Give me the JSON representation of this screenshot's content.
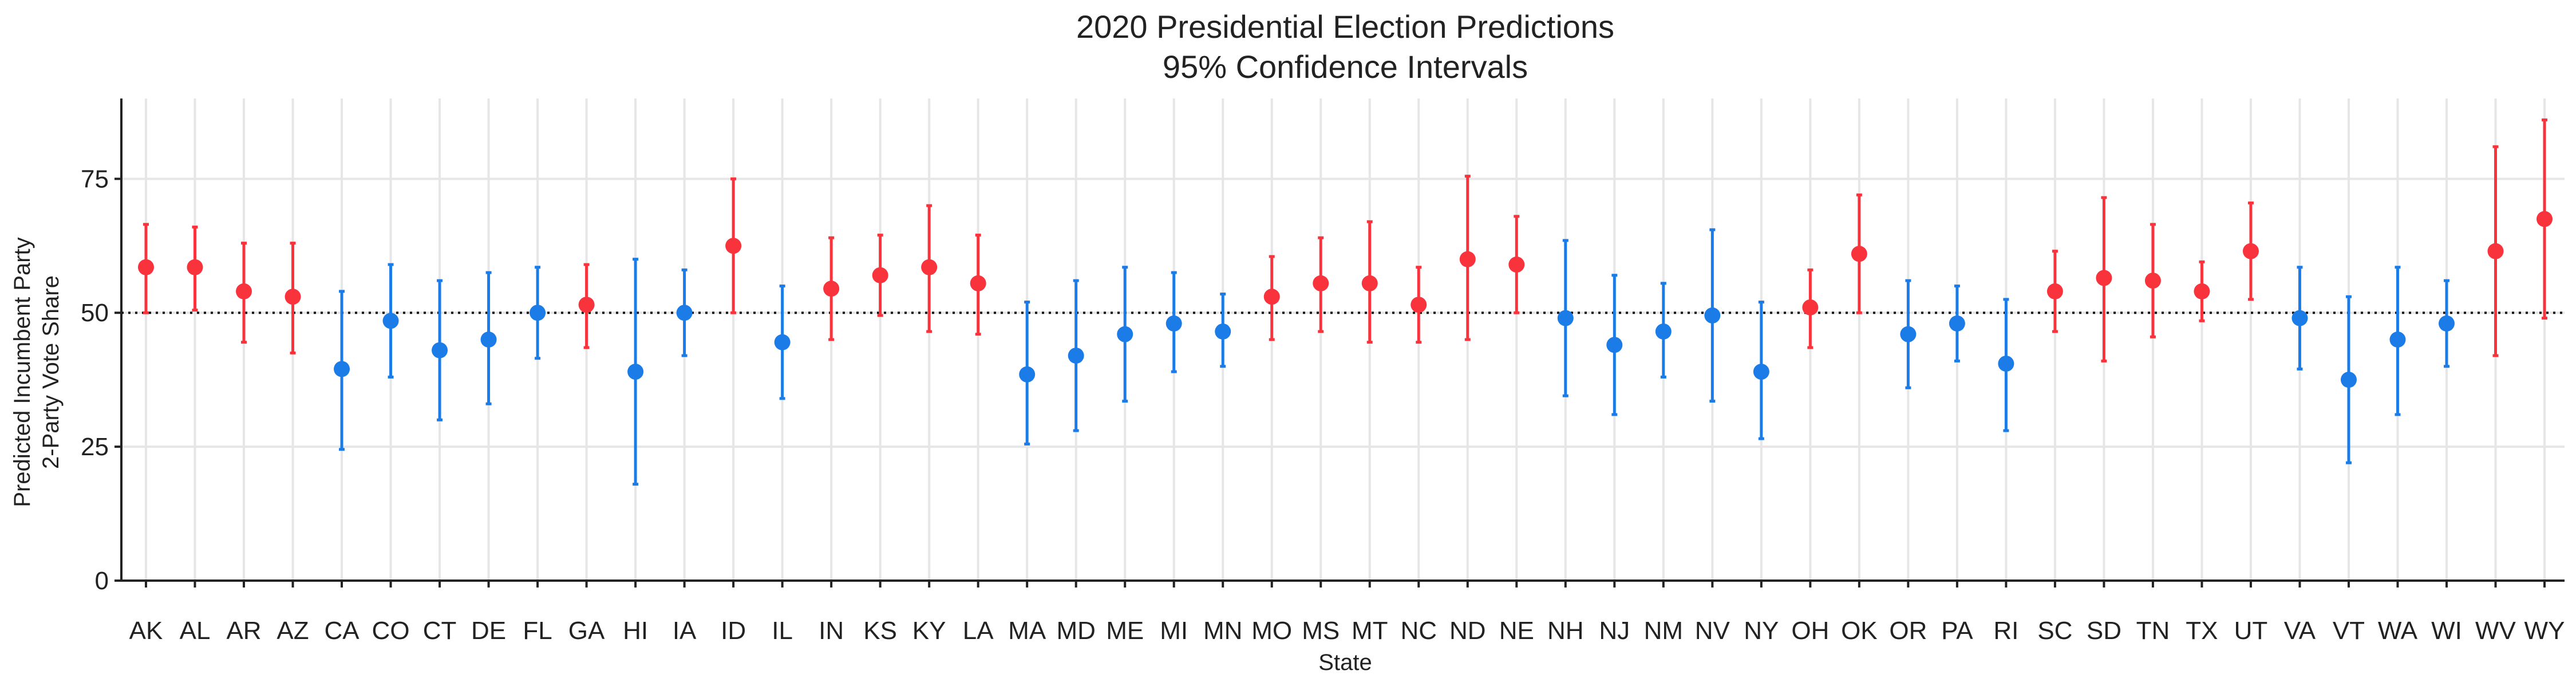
{
  "chart_data": {
    "type": "scatter",
    "title": "2020 Presidential Election Predictions",
    "subtitle": "95% Confidence Intervals",
    "xlabel": "State",
    "ylabel_line1": "Predicted Incumbent Party",
    "ylabel_line2": "2-Party Vote Share",
    "ylim": [
      0,
      90
    ],
    "yticks": [
      0,
      25,
      50,
      75
    ],
    "reference_line": 50,
    "grid": true,
    "colors": {
      "red": "#f8333c",
      "blue": "#1b7ce8",
      "grid": "#e6e6e6",
      "axis": "#222222"
    },
    "points": [
      {
        "state": "AK",
        "y": 58.5,
        "lo": 50.0,
        "hi": 66.5,
        "party": "red"
      },
      {
        "state": "AL",
        "y": 58.5,
        "lo": 50.5,
        "hi": 66.0,
        "party": "red"
      },
      {
        "state": "AR",
        "y": 54.0,
        "lo": 44.5,
        "hi": 63.0,
        "party": "red"
      },
      {
        "state": "AZ",
        "y": 53.0,
        "lo": 42.5,
        "hi": 63.0,
        "party": "red"
      },
      {
        "state": "CA",
        "y": 39.5,
        "lo": 24.5,
        "hi": 54.0,
        "party": "blue"
      },
      {
        "state": "CO",
        "y": 48.5,
        "lo": 38.0,
        "hi": 59.0,
        "party": "blue"
      },
      {
        "state": "CT",
        "y": 43.0,
        "lo": 30.0,
        "hi": 56.0,
        "party": "blue"
      },
      {
        "state": "DE",
        "y": 45.0,
        "lo": 33.0,
        "hi": 57.5,
        "party": "blue"
      },
      {
        "state": "FL",
        "y": 50.0,
        "lo": 41.5,
        "hi": 58.5,
        "party": "blue"
      },
      {
        "state": "GA",
        "y": 51.5,
        "lo": 43.5,
        "hi": 59.0,
        "party": "red"
      },
      {
        "state": "HI",
        "y": 39.0,
        "lo": 18.0,
        "hi": 60.0,
        "party": "blue"
      },
      {
        "state": "IA",
        "y": 50.0,
        "lo": 42.0,
        "hi": 58.0,
        "party": "blue"
      },
      {
        "state": "ID",
        "y": 62.5,
        "lo": 50.0,
        "hi": 75.0,
        "party": "red"
      },
      {
        "state": "IL",
        "y": 44.5,
        "lo": 34.0,
        "hi": 55.0,
        "party": "blue"
      },
      {
        "state": "IN",
        "y": 54.5,
        "lo": 45.0,
        "hi": 64.0,
        "party": "red"
      },
      {
        "state": "KS",
        "y": 57.0,
        "lo": 49.5,
        "hi": 64.5,
        "party": "red"
      },
      {
        "state": "KY",
        "y": 58.5,
        "lo": 46.5,
        "hi": 70.0,
        "party": "red"
      },
      {
        "state": "LA",
        "y": 55.5,
        "lo": 46.0,
        "hi": 64.5,
        "party": "red"
      },
      {
        "state": "MA",
        "y": 38.5,
        "lo": 25.5,
        "hi": 52.0,
        "party": "blue"
      },
      {
        "state": "MD",
        "y": 42.0,
        "lo": 28.0,
        "hi": 56.0,
        "party": "blue"
      },
      {
        "state": "ME",
        "y": 46.0,
        "lo": 33.5,
        "hi": 58.5,
        "party": "blue"
      },
      {
        "state": "MI",
        "y": 48.0,
        "lo": 39.0,
        "hi": 57.5,
        "party": "blue"
      },
      {
        "state": "MN",
        "y": 46.5,
        "lo": 40.0,
        "hi": 53.5,
        "party": "blue"
      },
      {
        "state": "MO",
        "y": 53.0,
        "lo": 45.0,
        "hi": 60.5,
        "party": "red"
      },
      {
        "state": "MS",
        "y": 55.5,
        "lo": 46.5,
        "hi": 64.0,
        "party": "red"
      },
      {
        "state": "MT",
        "y": 55.5,
        "lo": 44.5,
        "hi": 67.0,
        "party": "red"
      },
      {
        "state": "NC",
        "y": 51.5,
        "lo": 44.5,
        "hi": 58.5,
        "party": "red"
      },
      {
        "state": "ND",
        "y": 60.0,
        "lo": 45.0,
        "hi": 75.5,
        "party": "red"
      },
      {
        "state": "NE",
        "y": 59.0,
        "lo": 50.0,
        "hi": 68.0,
        "party": "red"
      },
      {
        "state": "NH",
        "y": 49.0,
        "lo": 34.5,
        "hi": 63.5,
        "party": "blue"
      },
      {
        "state": "NJ",
        "y": 44.0,
        "lo": 31.0,
        "hi": 57.0,
        "party": "blue"
      },
      {
        "state": "NM",
        "y": 46.5,
        "lo": 38.0,
        "hi": 55.5,
        "party": "blue"
      },
      {
        "state": "NV",
        "y": 49.5,
        "lo": 33.5,
        "hi": 65.5,
        "party": "blue"
      },
      {
        "state": "NY",
        "y": 39.0,
        "lo": 26.5,
        "hi": 52.0,
        "party": "blue"
      },
      {
        "state": "OH",
        "y": 51.0,
        "lo": 43.5,
        "hi": 58.0,
        "party": "red"
      },
      {
        "state": "OK",
        "y": 61.0,
        "lo": 50.0,
        "hi": 72.0,
        "party": "red"
      },
      {
        "state": "OR",
        "y": 46.0,
        "lo": 36.0,
        "hi": 56.0,
        "party": "blue"
      },
      {
        "state": "PA",
        "y": 48.0,
        "lo": 41.0,
        "hi": 55.0,
        "party": "blue"
      },
      {
        "state": "RI",
        "y": 40.5,
        "lo": 28.0,
        "hi": 52.5,
        "party": "blue"
      },
      {
        "state": "SC",
        "y": 54.0,
        "lo": 46.5,
        "hi": 61.5,
        "party": "red"
      },
      {
        "state": "SD",
        "y": 56.5,
        "lo": 41.0,
        "hi": 71.5,
        "party": "red"
      },
      {
        "state": "TN",
        "y": 56.0,
        "lo": 45.5,
        "hi": 66.5,
        "party": "red"
      },
      {
        "state": "TX",
        "y": 54.0,
        "lo": 48.5,
        "hi": 59.5,
        "party": "red"
      },
      {
        "state": "UT",
        "y": 61.5,
        "lo": 52.5,
        "hi": 70.5,
        "party": "red"
      },
      {
        "state": "VA",
        "y": 49.0,
        "lo": 39.5,
        "hi": 58.5,
        "party": "blue"
      },
      {
        "state": "VT",
        "y": 37.5,
        "lo": 22.0,
        "hi": 53.0,
        "party": "blue"
      },
      {
        "state": "WA",
        "y": 45.0,
        "lo": 31.0,
        "hi": 58.5,
        "party": "blue"
      },
      {
        "state": "WI",
        "y": 48.0,
        "lo": 40.0,
        "hi": 56.0,
        "party": "blue"
      },
      {
        "state": "WV",
        "y": 61.5,
        "lo": 42.0,
        "hi": 81.0,
        "party": "red"
      },
      {
        "state": "WY",
        "y": 67.5,
        "lo": 49.0,
        "hi": 86.0,
        "party": "red"
      }
    ]
  }
}
